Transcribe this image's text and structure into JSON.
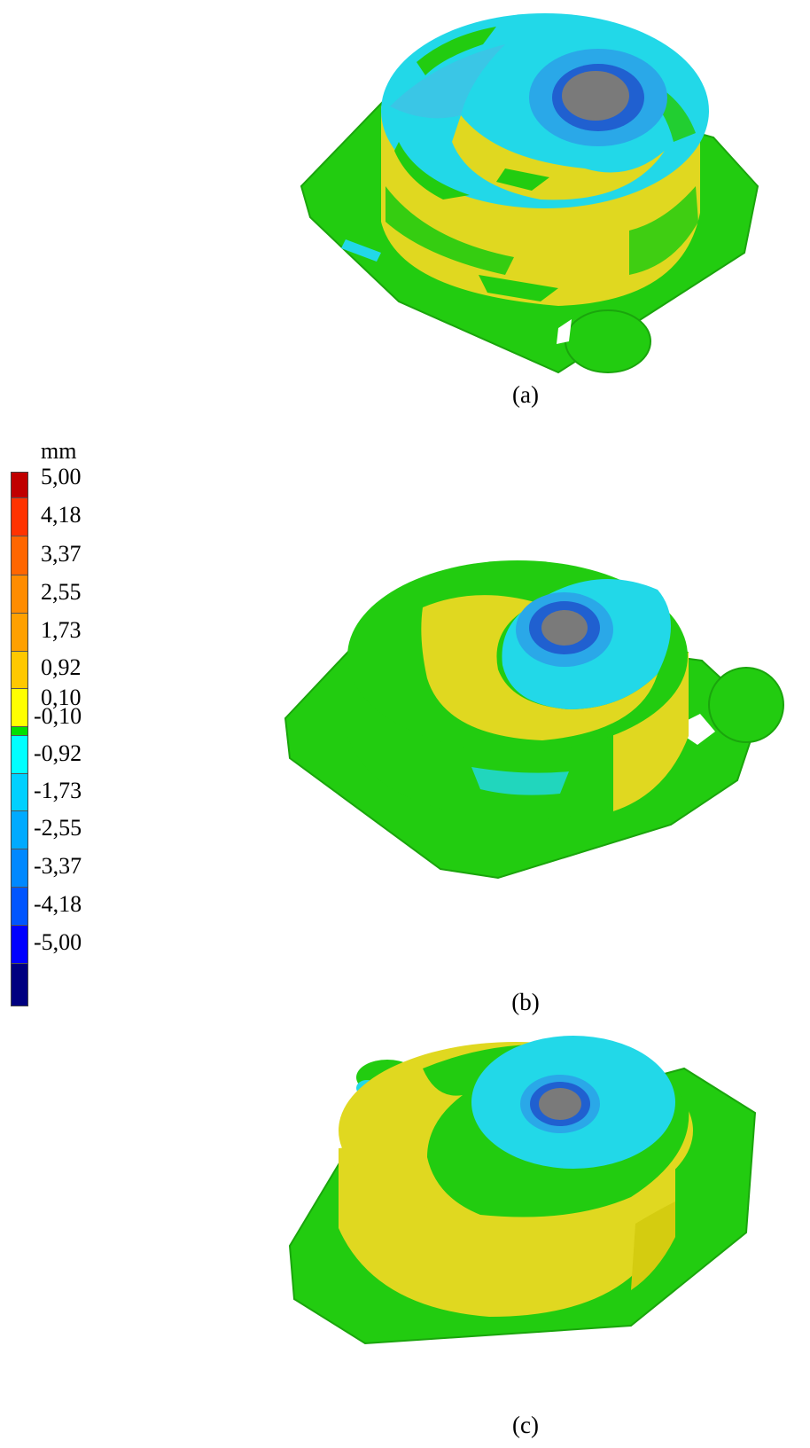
{
  "legend": {
    "unit": "mm",
    "labels": [
      "5,00",
      "4,18",
      "3,37",
      "2,55",
      "1,73",
      "0,92",
      "0,10",
      "-0,10",
      "-0,92",
      "-1,73",
      "-2,55",
      "-3,37",
      "-4,18",
      "-5,00"
    ],
    "colors": [
      "#c00000",
      "#ff3300",
      "#ff6600",
      "#ff9900",
      "#ffa500",
      "#ffcc00",
      "#ffff00",
      "#00ff00",
      "#00ffff",
      "#00ccff",
      "#0099ff",
      "#0066ff",
      "#0033ff",
      "#0000ff",
      "#000080"
    ]
  },
  "captions": {
    "a": "(a)",
    "b": "(b)",
    "c": "(c)"
  },
  "colors": {
    "green": "#22cc10",
    "yellow": "#e0d820",
    "cyan": "#22d8e8",
    "light_blue": "#2aa8e8",
    "blue": "#2060d0",
    "grey": "#7a7a7a"
  }
}
